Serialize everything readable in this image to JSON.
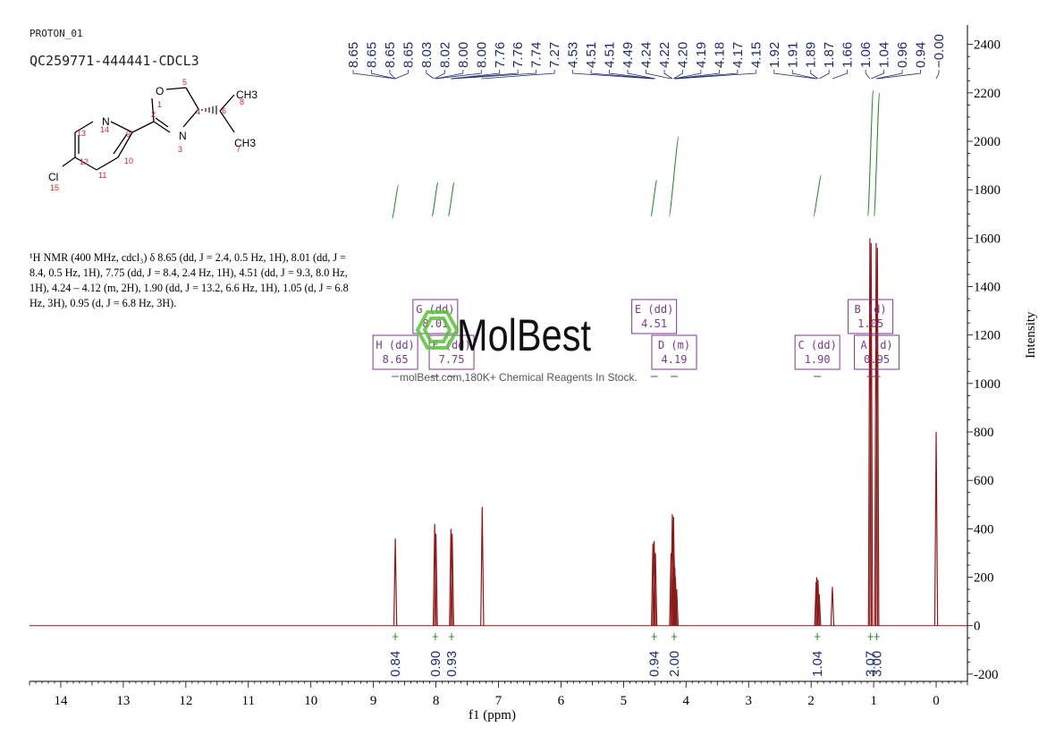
{
  "header": {
    "experiment": "PROTON_01",
    "sample_id": "QC259771-444441-CDCL3"
  },
  "structure": {
    "atoms": [
      {
        "id": "O",
        "label": "O",
        "number": "1"
      },
      {
        "id": "C2",
        "label": "",
        "number": "2"
      },
      {
        "id": "N3",
        "label": "N",
        "number": "3"
      },
      {
        "id": "C4",
        "label": "",
        "number": "4"
      },
      {
        "id": "C5",
        "label": "",
        "number": "5"
      },
      {
        "id": "C6",
        "label": "",
        "number": "6"
      },
      {
        "id": "C7",
        "label": "CH3",
        "number": "7"
      },
      {
        "id": "C8",
        "label": "CH3",
        "number": "8"
      },
      {
        "id": "C9",
        "label": "",
        "number": "9"
      },
      {
        "id": "C10",
        "label": "",
        "number": "10"
      },
      {
        "id": "C11",
        "label": "",
        "number": "11"
      },
      {
        "id": "C12",
        "label": "",
        "number": "12"
      },
      {
        "id": "C13",
        "label": "",
        "number": "13"
      },
      {
        "id": "N14",
        "label": "N",
        "number": "14"
      },
      {
        "id": "Cl15",
        "label": "Cl",
        "number": "15"
      }
    ]
  },
  "nmr_description": "¹H NMR (400 MHz, cdcl₃) δ 8.65 (dd, J = 2.4, 0.5 Hz, 1H), 8.01 (dd, J = 8.4, 0.5 Hz, 1H), 7.75 (dd, J = 8.4, 2.4 Hz, 1H), 4.51 (dd, J = 9.3, 8.0 Hz, 1H), 4.24 – 4.12 (m, 2H), 1.90 (dd, J = 13.2, 6.6 Hz, 1H), 1.05 (d, J = 6.8 Hz, 3H), 0.95 (d, J = 6.8 Hz, 3H).",
  "watermark": {
    "brand": "MolBest",
    "tagline": "molBest.com,180K+ Chemical Reagents In Stock."
  },
  "colors": {
    "spectrum": "#8b1a1a",
    "peak_labels": "#1f2a6e",
    "integral_curve": "#2e8b2e",
    "multiplet_box": "#7a3a8c",
    "axis": "#000000",
    "watermark_logo": "#5cc13a"
  },
  "chart_data": {
    "type": "line",
    "xlabel": "f1 (ppm)",
    "ylabel": "Intensity",
    "xlim": [
      14.5,
      -0.5
    ],
    "ylim": [
      -230,
      2480
    ],
    "x_ticks": [
      14,
      13,
      12,
      11,
      10,
      9,
      8,
      7,
      6,
      5,
      4,
      3,
      2,
      1,
      0
    ],
    "y_ticks": [
      2400,
      2200,
      2000,
      1800,
      1600,
      1400,
      1200,
      1000,
      800,
      600,
      400,
      200,
      0,
      -200
    ],
    "peaks": [
      {
        "ppm": 8.65,
        "height": 360
      },
      {
        "ppm": 8.02,
        "height": 420
      },
      {
        "ppm": 8.0,
        "height": 380
      },
      {
        "ppm": 7.76,
        "height": 400
      },
      {
        "ppm": 7.74,
        "height": 380
      },
      {
        "ppm": 7.26,
        "height": 490
      },
      {
        "ppm": 4.53,
        "height": 340
      },
      {
        "ppm": 4.51,
        "height": 350
      },
      {
        "ppm": 4.49,
        "height": 300
      },
      {
        "ppm": 4.24,
        "height": 300
      },
      {
        "ppm": 4.22,
        "height": 460
      },
      {
        "ppm": 4.2,
        "height": 450
      },
      {
        "ppm": 4.19,
        "height": 280
      },
      {
        "ppm": 4.18,
        "height": 240
      },
      {
        "ppm": 4.17,
        "height": 200
      },
      {
        "ppm": 4.15,
        "height": 150
      },
      {
        "ppm": 1.92,
        "height": 180
      },
      {
        "ppm": 1.91,
        "height": 200
      },
      {
        "ppm": 1.89,
        "height": 190
      },
      {
        "ppm": 1.87,
        "height": 130
      },
      {
        "ppm": 1.66,
        "height": 160
      },
      {
        "ppm": 1.06,
        "height": 1600
      },
      {
        "ppm": 1.04,
        "height": 1580
      },
      {
        "ppm": 0.96,
        "height": 1580
      },
      {
        "ppm": 0.94,
        "height": 1560
      },
      {
        "ppm": 0.0,
        "height": 800
      }
    ],
    "peak_labels": [
      {
        "text": "8.65",
        "ppm": 8.65
      },
      {
        "text": "8.65",
        "ppm": 8.65
      },
      {
        "text": "8.65",
        "ppm": 8.65
      },
      {
        "text": "8.65",
        "ppm": 8.65
      },
      {
        "text": "8.03",
        "ppm": 8.03
      },
      {
        "text": "8.02",
        "ppm": 8.02
      },
      {
        "text": "8.00",
        "ppm": 8.0
      },
      {
        "text": "8.00",
        "ppm": 8.0
      },
      {
        "text": "7.76",
        "ppm": 7.76
      },
      {
        "text": "7.76",
        "ppm": 7.76
      },
      {
        "text": "7.74",
        "ppm": 7.74
      },
      {
        "text": "7.27",
        "ppm": 7.27
      },
      {
        "text": "4.53",
        "ppm": 4.53
      },
      {
        "text": "4.51",
        "ppm": 4.51
      },
      {
        "text": "4.51",
        "ppm": 4.51
      },
      {
        "text": "4.49",
        "ppm": 4.49
      },
      {
        "text": "4.24",
        "ppm": 4.24
      },
      {
        "text": "4.22",
        "ppm": 4.22
      },
      {
        "text": "4.20",
        "ppm": 4.2
      },
      {
        "text": "4.19",
        "ppm": 4.19
      },
      {
        "text": "4.18",
        "ppm": 4.18
      },
      {
        "text": "4.17",
        "ppm": 4.17
      },
      {
        "text": "4.15",
        "ppm": 4.15
      },
      {
        "text": "1.92",
        "ppm": 1.92
      },
      {
        "text": "1.91",
        "ppm": 1.91
      },
      {
        "text": "1.89",
        "ppm": 1.89
      },
      {
        "text": "1.87",
        "ppm": 1.87
      },
      {
        "text": "1.66",
        "ppm": 1.66
      },
      {
        "text": "1.06",
        "ppm": 1.06
      },
      {
        "text": "1.04",
        "ppm": 1.04
      },
      {
        "text": "0.96",
        "ppm": 0.96
      },
      {
        "text": "0.94",
        "ppm": 0.94
      },
      {
        "text": "−0.00",
        "ppm": 0.0
      }
    ],
    "multiplets": [
      {
        "label": "H (dd)",
        "shift": "8.65",
        "ppm": 8.65,
        "level": 1
      },
      {
        "label": "G (dd)",
        "shift": "8.01",
        "ppm": 8.01,
        "level": 2
      },
      {
        "label": "F (dd)",
        "shift": "7.75",
        "ppm": 7.75,
        "level": 1
      },
      {
        "label": "E (dd)",
        "shift": "4.51",
        "ppm": 4.51,
        "level": 2
      },
      {
        "label": "D (m)",
        "shift": "4.19",
        "ppm": 4.19,
        "level": 1
      },
      {
        "label": "C (dd)",
        "shift": "1.90",
        "ppm": 1.9,
        "level": 1
      },
      {
        "label": "B (d)",
        "shift": "1.05",
        "ppm": 1.05,
        "level": 2
      },
      {
        "label": "A (d)",
        "shift": "0.95",
        "ppm": 0.95,
        "level": 1
      }
    ],
    "integrals": [
      {
        "value": "0.84",
        "ppm": 8.65
      },
      {
        "value": "0.90",
        "ppm": 8.01
      },
      {
        "value": "0.93",
        "ppm": 7.75
      },
      {
        "value": "0.94",
        "ppm": 4.51
      },
      {
        "value": "2.00",
        "ppm": 4.19
      },
      {
        "value": "1.04",
        "ppm": 1.9
      },
      {
        "value": "3.07",
        "ppm": 1.05
      },
      {
        "value": "3.00",
        "ppm": 0.95
      }
    ],
    "integral_curves": [
      {
        "ppm_start": 8.7,
        "ppm_end": 8.6,
        "y_start": 1680,
        "y_end": 1820
      },
      {
        "ppm_start": 8.06,
        "ppm_end": 7.97,
        "y_start": 1690,
        "y_end": 1830
      },
      {
        "ppm_start": 7.8,
        "ppm_end": 7.71,
        "y_start": 1690,
        "y_end": 1830
      },
      {
        "ppm_start": 4.56,
        "ppm_end": 4.47,
        "y_start": 1690,
        "y_end": 1840
      },
      {
        "ppm_start": 4.27,
        "ppm_end": 4.12,
        "y_start": 1690,
        "y_end": 2020
      },
      {
        "ppm_start": 1.96,
        "ppm_end": 1.84,
        "y_start": 1690,
        "y_end": 1860
      },
      {
        "ppm_start": 1.09,
        "ppm_end": 1.01,
        "y_start": 1690,
        "y_end": 2210
      },
      {
        "ppm_start": 0.99,
        "ppm_end": 0.91,
        "y_start": 1690,
        "y_end": 2200
      }
    ]
  }
}
